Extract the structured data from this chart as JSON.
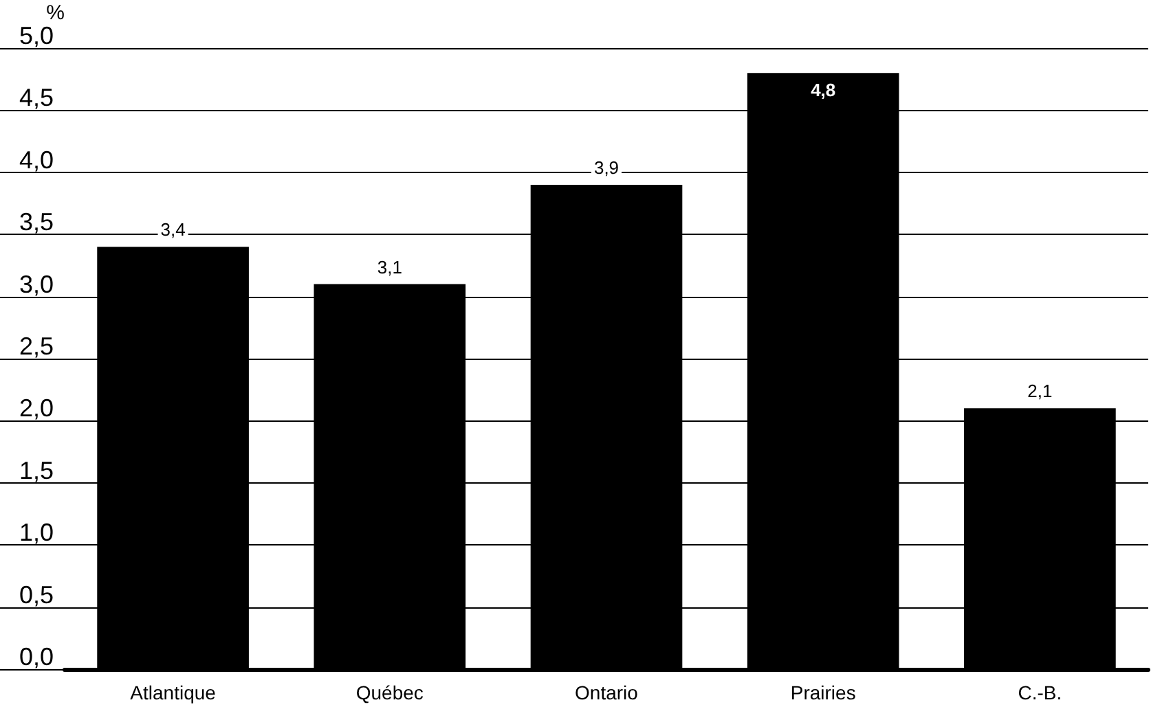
{
  "chart_data": {
    "type": "bar",
    "ylabel": "%",
    "categories": [
      "Atlantique",
      "Québec",
      "Ontario",
      "Prairies",
      "C.-B."
    ],
    "values": [
      3.4,
      3.1,
      3.9,
      4.8,
      2.1
    ],
    "value_labels": [
      "3,4",
      "3,1",
      "3,9",
      "4,8",
      "2,1"
    ],
    "color": "#000000",
    "ylim": [
      0,
      5
    ],
    "yticks": [
      {
        "value": 0,
        "label": "0,0"
      },
      {
        "value": 0.5,
        "label": "0,5"
      },
      {
        "value": 1,
        "label": "1,0"
      },
      {
        "value": 1.5,
        "label": "1,5"
      },
      {
        "value": 2,
        "label": "2,0"
      },
      {
        "value": 2.5,
        "label": "2,5"
      },
      {
        "value": 3,
        "label": "3,0"
      },
      {
        "value": 3.5,
        "label": "3,5"
      },
      {
        "value": 4,
        "label": "4,0"
      },
      {
        "value": 4.5,
        "label": "4,5"
      },
      {
        "value": 5,
        "label": "5,0"
      }
    ],
    "grid": "y"
  }
}
